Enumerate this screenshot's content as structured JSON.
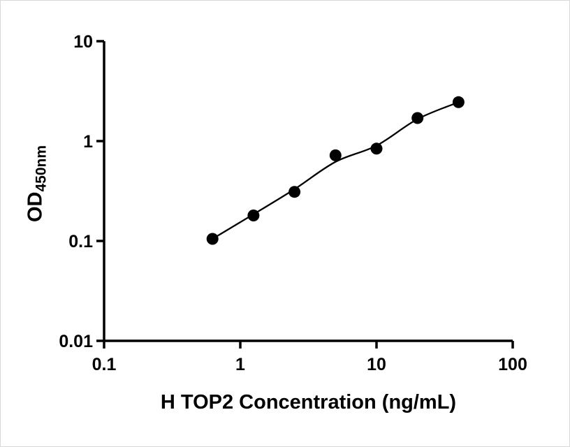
{
  "chart_data": {
    "type": "scatter",
    "title": "",
    "xlabel": "H TOP2 Concentration (ng/mL)",
    "ylabel_main": "OD",
    "ylabel_sub": "450nm",
    "x_scale": "log",
    "y_scale": "log",
    "xlim": [
      0.1,
      100
    ],
    "ylim": [
      0.01,
      10
    ],
    "grid": false,
    "legend": false,
    "axis_color": "#000000",
    "background": "#ffffff",
    "x_ticks": [
      {
        "value": 0.1,
        "label": "0.1"
      },
      {
        "value": 1,
        "label": "1"
      },
      {
        "value": 10,
        "label": "10"
      },
      {
        "value": 100,
        "label": "100"
      }
    ],
    "y_ticks": [
      {
        "value": 0.01,
        "label": "0.01"
      },
      {
        "value": 0.1,
        "label": "0.1"
      },
      {
        "value": 1,
        "label": "1"
      },
      {
        "value": 10,
        "label": "10"
      }
    ],
    "series": [
      {
        "marker": "circle",
        "marker_radius": 8.5,
        "color": "#000000",
        "points": [
          {
            "x": 0.625,
            "y": 0.105
          },
          {
            "x": 1.25,
            "y": 0.18
          },
          {
            "x": 2.5,
            "y": 0.31
          },
          {
            "x": 5,
            "y": 0.72
          },
          {
            "x": 10,
            "y": 0.84
          },
          {
            "x": 20,
            "y": 1.7
          },
          {
            "x": 40,
            "y": 2.45
          }
        ],
        "fit_curve": [
          {
            "x": 0.625,
            "y": 0.105
          },
          {
            "x": 1.25,
            "y": 0.185
          },
          {
            "x": 2.5,
            "y": 0.33
          },
          {
            "x": 5,
            "y": 0.62
          },
          {
            "x": 10,
            "y": 0.9
          },
          {
            "x": 20,
            "y": 1.66
          },
          {
            "x": 40,
            "y": 2.45
          }
        ]
      }
    ]
  }
}
